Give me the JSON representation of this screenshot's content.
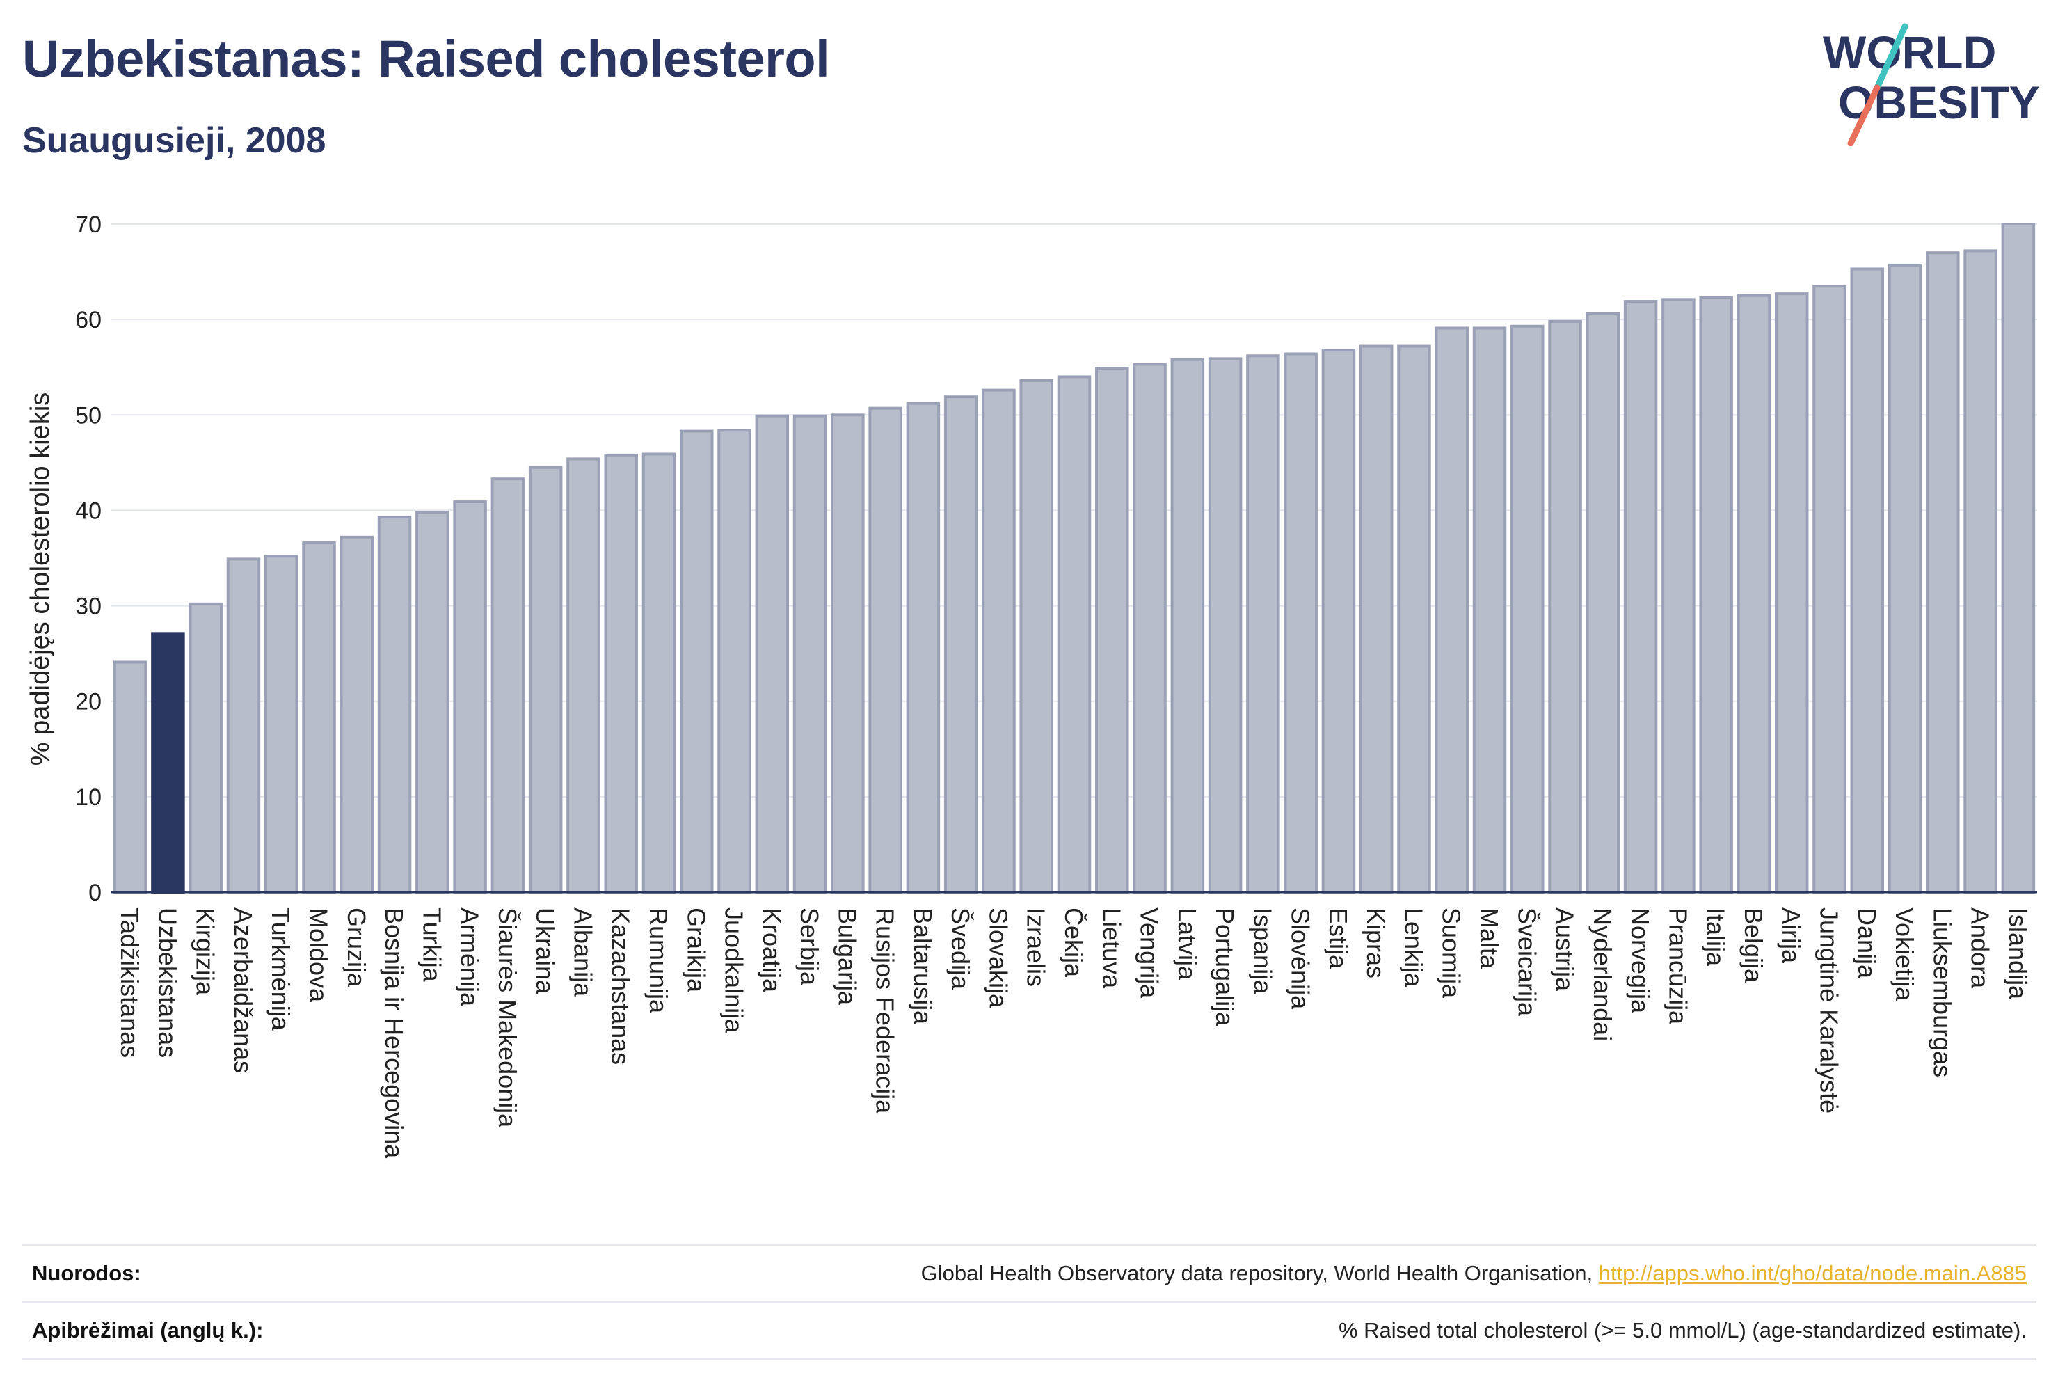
{
  "header": {
    "title": "Uzbekistanas: Raised cholesterol",
    "subtitle": "Suaugusieji, 2008"
  },
  "logo": {
    "line1": "WORLD",
    "line2": "OBESITY",
    "icon": "world-obesity-logo"
  },
  "colors": {
    "bar": "#b8bdcc",
    "bar_stroke": "#9aa1b6",
    "highlight": "#2b3561",
    "title": "#2b3561",
    "link": "#e8b22a"
  },
  "chart_data": {
    "type": "bar",
    "title": "Uzbekistanas: Raised cholesterol",
    "subtitle": "Suaugusieji, 2008",
    "xlabel": "",
    "ylabel": "% padidėjęs cholesterolio kiekis",
    "ylim": [
      0,
      70
    ],
    "yticks": [
      0,
      10,
      20,
      30,
      40,
      50,
      60,
      70
    ],
    "grid": true,
    "highlight": "Uzbekistanas",
    "categories": [
      "Tadžikistanas",
      "Uzbekistanas",
      "Kirgizija",
      "Azerbaidžanas",
      "Turkmėnija",
      "Moldova",
      "Gruzija",
      "Bosnija ir Hercegovina",
      "Turkija",
      "Armėnija",
      "Šiaurės Makedonija",
      "Ukraina",
      "Albanija",
      "Kazachstanas",
      "Rumunija",
      "Graikija",
      "Juodkalnija",
      "Kroatija",
      "Serbija",
      "Bulgarija",
      "Rusijos Federacija",
      "Baltarusija",
      "Švedija",
      "Slovakija",
      "Izraelis",
      "Čekija",
      "Lietuva",
      "Vengrija",
      "Latvija",
      "Portugalija",
      "Ispanija",
      "Slovėnija",
      "Estija",
      "Kipras",
      "Lenkija",
      "Suomija",
      "Malta",
      "Šveicarija",
      "Austrija",
      "Nyderlandai",
      "Norvegija",
      "Prancūzija",
      "Italija",
      "Belgija",
      "Airija",
      "Jungtinė Karalystė",
      "Danija",
      "Vokietija",
      "Liuksemburgas",
      "Andora",
      "Islandija"
    ],
    "values": [
      24.1,
      27.1,
      30.2,
      34.9,
      35.2,
      36.6,
      37.2,
      39.3,
      39.8,
      40.9,
      43.3,
      44.5,
      45.4,
      45.8,
      45.9,
      48.3,
      48.4,
      49.9,
      49.9,
      50.0,
      50.7,
      51.2,
      51.9,
      52.6,
      53.6,
      54.0,
      54.9,
      55.3,
      55.8,
      55.9,
      56.2,
      56.4,
      56.8,
      57.2,
      57.2,
      59.1,
      59.1,
      59.3,
      59.8,
      60.6,
      61.9,
      62.1,
      62.3,
      62.5,
      62.7,
      63.5,
      65.3,
      65.7,
      67.0,
      67.2,
      70.0
    ]
  },
  "footer": {
    "sources_label": "Nuorodos:",
    "sources_text": "Global Health Observatory data repository, World Health Organisation,",
    "sources_link": "http://apps.who.int/gho/data/node.main.A885",
    "definitions_label": "Apibrėžimai (anglų k.):",
    "definitions_text": "% Raised total cholesterol (>= 5.0 mmol/L) (age-standardized estimate)."
  }
}
